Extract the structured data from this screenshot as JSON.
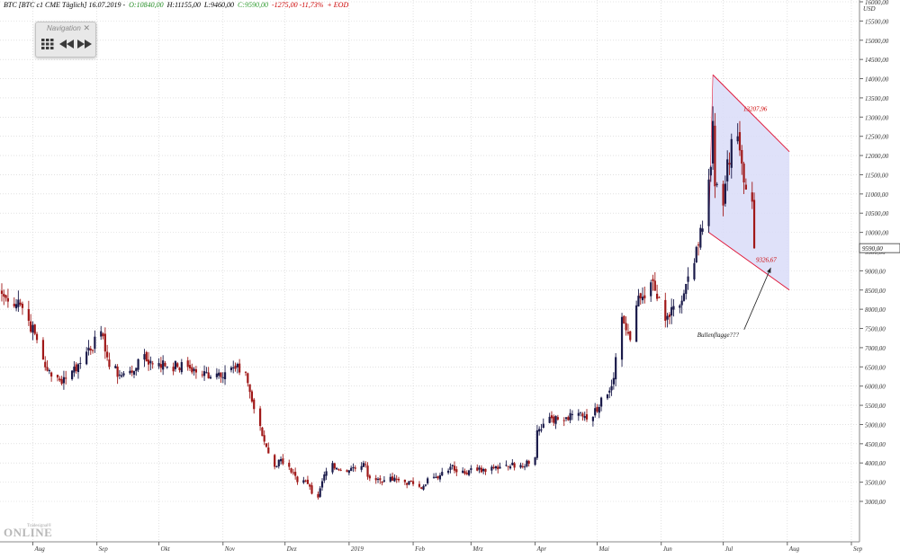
{
  "header": {
    "symbol": "BTC [BTC c1 CME Täglich] 16.07.2019 -",
    "open": "O:10840,00",
    "high": "H:11155,00",
    "low": "L:9460,00",
    "close": "C:9590,00",
    "change": "-1275,00 -11,73%",
    "mode": "+ EOD"
  },
  "colors": {
    "up": "#1a1a4a",
    "down": "#a01818",
    "open_green": "#228b22",
    "close_green": "#2e9b2e",
    "change_red": "#cc0000",
    "channel_fill": "#d9dcf8",
    "channel_line": "#e0193a",
    "grid": "#d0d0d0"
  },
  "navigation": {
    "title": "Navigation",
    "close_icon": "close-icon",
    "buttons": [
      "grid-icon",
      "rewind-icon",
      "fast-forward-icon"
    ]
  },
  "logo": {
    "top": "Tradesignal®",
    "bottom": "ONLINE"
  },
  "chart_data": {
    "type": "candlestick",
    "currency_label": "USD",
    "y_ticks": [
      "3000,00",
      "3500,00",
      "4000,00",
      "4500,00",
      "5000,00",
      "5500,00",
      "6000,00",
      "6500,00",
      "7000,00",
      "7500,00",
      "8000,00",
      "8500,00",
      "9000,00",
      "9500,00",
      "10000,00",
      "10500,00",
      "11000,00",
      "11500,00",
      "12000,00",
      "12500,00",
      "13000,00",
      "13500,00",
      "14000,00",
      "14500,00",
      "15000,00",
      "15500,00",
      "16000,00"
    ],
    "y_tick_values": [
      3000,
      3500,
      4000,
      4500,
      5000,
      5500,
      6000,
      6500,
      7000,
      7500,
      8000,
      8500,
      9000,
      9500,
      10000,
      10500,
      11000,
      11500,
      12000,
      12500,
      13000,
      13500,
      14000,
      14500,
      15000,
      15500,
      16000
    ],
    "last_price_label": "9590,00",
    "last_price": 9590,
    "x_labels": [
      "Aug",
      "Sep",
      "Okt",
      "Nov",
      "Dez",
      "2019",
      "Feb",
      "Mrz",
      "Apr",
      "Mai",
      "Jun",
      "Jul",
      "Aug",
      "Sep"
    ],
    "x_label_dates": [
      "2018-08-01",
      "2018-09-01",
      "2018-10-01",
      "2018-11-01",
      "2018-12-01",
      "2019-01-01",
      "2019-02-01",
      "2019-03-01",
      "2019-04-01",
      "2019-05-01",
      "2019-06-01",
      "2019-07-01",
      "2019-08-01",
      "2019-09-01"
    ],
    "anchors": [
      [
        "2018-07-17",
        8400
      ],
      [
        "2018-07-20",
        8200
      ],
      [
        "2018-07-25",
        8250
      ],
      [
        "2018-07-30",
        7700
      ],
      [
        "2018-08-03",
        7200
      ],
      [
        "2018-08-08",
        6400
      ],
      [
        "2018-08-10",
        6250
      ],
      [
        "2018-08-14",
        6150
      ],
      [
        "2018-08-20",
        6400
      ],
      [
        "2018-08-24",
        6600
      ],
      [
        "2018-08-28",
        7000
      ],
      [
        "2018-09-04",
        7300
      ],
      [
        "2018-09-07",
        6500
      ],
      [
        "2018-09-12",
        6300
      ],
      [
        "2018-09-18",
        6350
      ],
      [
        "2018-09-21",
        6700
      ],
      [
        "2018-10-01",
        6600
      ],
      [
        "2018-10-10",
        6500
      ],
      [
        "2018-10-15",
        6500
      ],
      [
        "2018-10-22",
        6300
      ],
      [
        "2018-10-30",
        6350
      ],
      [
        "2018-11-07",
        6450
      ],
      [
        "2018-11-12",
        6350
      ],
      [
        "2018-11-15",
        5600
      ],
      [
        "2018-11-20",
        4700
      ],
      [
        "2018-11-26",
        3900
      ],
      [
        "2018-11-29",
        4100
      ],
      [
        "2018-12-03",
        3900
      ],
      [
        "2018-12-07",
        3500
      ],
      [
        "2018-12-12",
        3450
      ],
      [
        "2018-12-14",
        3200
      ],
      [
        "2018-12-17",
        3100
      ],
      [
        "2018-12-20",
        3700
      ],
      [
        "2018-12-24",
        4000
      ],
      [
        "2018-12-28",
        3800
      ],
      [
        "2019-01-04",
        3850
      ],
      [
        "2019-01-08",
        4000
      ],
      [
        "2019-01-11",
        3600
      ],
      [
        "2019-01-18",
        3550
      ],
      [
        "2019-01-25",
        3550
      ],
      [
        "2019-02-01",
        3450
      ],
      [
        "2019-02-06",
        3400
      ],
      [
        "2019-02-08",
        3600
      ],
      [
        "2019-02-13",
        3600
      ],
      [
        "2019-02-19",
        3900
      ],
      [
        "2019-02-25",
        3800
      ],
      [
        "2019-03-04",
        3800
      ],
      [
        "2019-03-11",
        3900
      ],
      [
        "2019-03-18",
        3950
      ],
      [
        "2019-03-25",
        3950
      ],
      [
        "2019-04-01",
        4150
      ],
      [
        "2019-04-02",
        4850
      ],
      [
        "2019-04-08",
        5200
      ],
      [
        "2019-04-15",
        5100
      ],
      [
        "2019-04-22",
        5300
      ],
      [
        "2019-04-29",
        5200
      ],
      [
        "2019-05-03",
        5700
      ],
      [
        "2019-05-08",
        6000
      ],
      [
        "2019-05-13",
        7800
      ],
      [
        "2019-05-17",
        7200
      ],
      [
        "2019-05-20",
        8100
      ],
      [
        "2019-05-27",
        8700
      ],
      [
        "2019-06-03",
        7700
      ],
      [
        "2019-06-10",
        8100
      ],
      [
        "2019-06-17",
        9200
      ],
      [
        "2019-06-21",
        10100
      ],
      [
        "2019-06-25",
        11700
      ],
      [
        "2019-06-26",
        12900
      ],
      [
        "2019-06-27",
        11200
      ],
      [
        "2019-07-01",
        10700
      ],
      [
        "2019-07-03",
        11900
      ],
      [
        "2019-07-08",
        12500
      ],
      [
        "2019-07-11",
        11300
      ],
      [
        "2019-07-15",
        10800
      ],
      [
        "2019-07-16",
        9590
      ]
    ],
    "channel": {
      "upper": [
        [
          "2019-06-26",
          14100
        ],
        [
          "2019-08-02",
          12100
        ]
      ],
      "lower": [
        [
          "2019-06-24",
          10000
        ],
        [
          "2019-08-02",
          8500
        ]
      ]
    },
    "annotations": [
      {
        "text": "13207,96",
        "date": "2019-07-09",
        "price": 13207.96
      },
      {
        "text": "9326,67",
        "date": "2019-07-16",
        "price": 9326.67
      },
      {
        "text": "Bullenflagge???",
        "date": "2019-07-05",
        "price": 7400
      }
    ]
  }
}
